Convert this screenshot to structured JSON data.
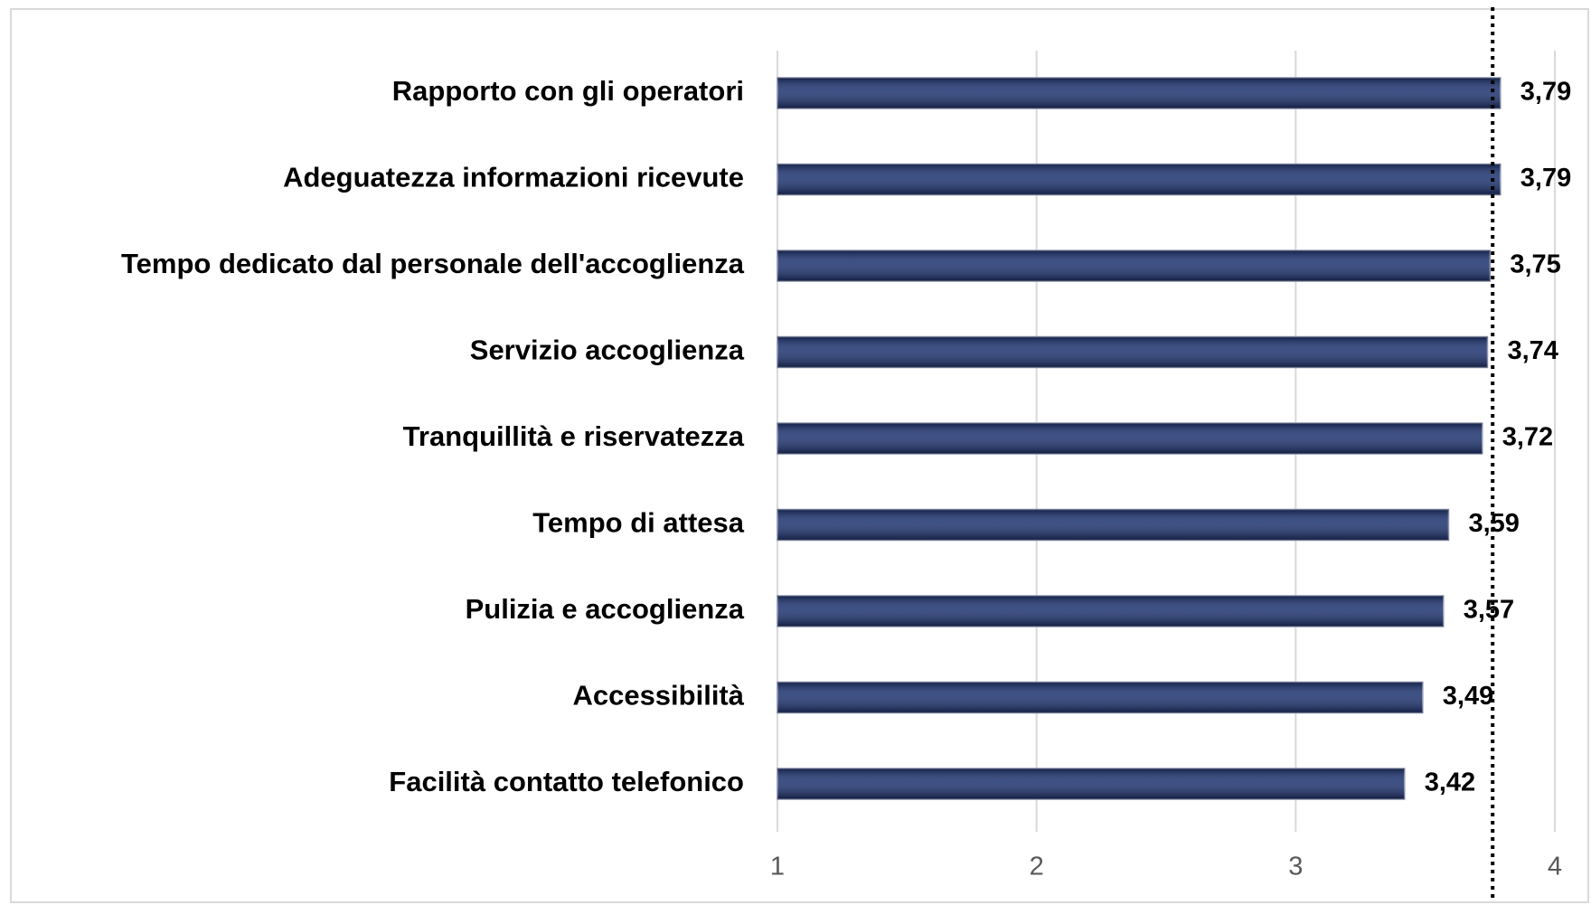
{
  "chart_data": {
    "type": "bar",
    "orientation": "horizontal",
    "categories": [
      "Rapporto con gli operatori",
      "Adeguatezza informazioni ricevute",
      "Tempo dedicato dal personale dell'accoglienza",
      "Servizio accoglienza",
      "Tranquillità e riservatezza",
      "Tempo di attesa",
      "Pulizia e accoglienza",
      "Accessibilità",
      "Facilità contatto telefonico"
    ],
    "values": [
      3.79,
      3.79,
      3.75,
      3.74,
      3.72,
      3.59,
      3.57,
      3.49,
      3.42
    ],
    "value_labels": [
      "3,79",
      "3,79",
      "3,75",
      "3,74",
      "3,72",
      "3,59",
      "3,57",
      "3,49",
      "3,42"
    ],
    "color": "#1c3270",
    "xlim": [
      1,
      4
    ],
    "xticks": [
      1,
      2,
      3,
      4
    ],
    "grid": true,
    "reference_line": 3.76
  }
}
